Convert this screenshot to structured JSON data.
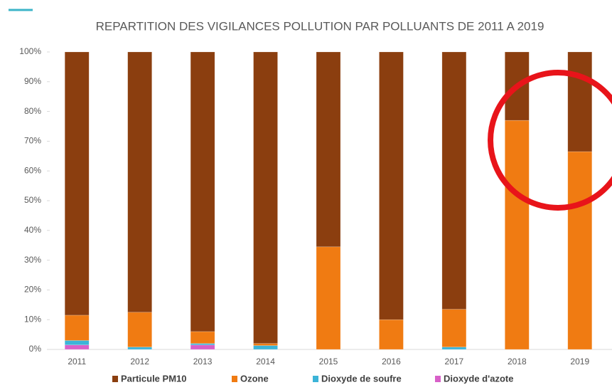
{
  "chart_data": {
    "type": "stacked_bar",
    "title": "REPARTITION DES VIGILANCES POLLUTION PAR POLLUANTS DE 2011 A 2019",
    "categories": [
      "2011",
      "2012",
      "2013",
      "2014",
      "2015",
      "2016",
      "2017",
      "2018",
      "2019"
    ],
    "series": [
      {
        "name": "Particule PM10",
        "color": "#8b3e0f",
        "values": [
          88.5,
          87.5,
          94,
          98,
          65.5,
          90,
          86.5,
          23,
          33.5
        ]
      },
      {
        "name": "Ozone",
        "color": "#f07b12",
        "values": [
          8.5,
          11.7,
          4,
          0.7,
          34.5,
          10,
          12.7,
          77,
          66.5
        ]
      },
      {
        "name": "Dioxyde de soufre",
        "color": "#3cb4d8",
        "values": [
          1.5,
          0.8,
          0.5,
          1.3,
          0,
          0,
          0.8,
          0,
          0
        ]
      },
      {
        "name": "Dioxyde d'azote",
        "color": "#d860c8",
        "values": [
          1.5,
          0,
          1.5,
          0,
          0,
          0,
          0,
          0,
          0
        ]
      }
    ],
    "ylim": [
      0,
      100
    ],
    "yticks": [
      {
        "value": 0,
        "label": "0%"
      },
      {
        "value": 10,
        "label": "10%"
      },
      {
        "value": 20,
        "label": "20%"
      },
      {
        "value": 30,
        "label": "30%"
      },
      {
        "value": 40,
        "label": "40%"
      },
      {
        "value": 50,
        "label": "50%"
      },
      {
        "value": 60,
        "label": "60%"
      },
      {
        "value": 70,
        "label": "70%"
      },
      {
        "value": 80,
        "label": "80%"
      },
      {
        "value": 90,
        "label": "90%"
      },
      {
        "value": 100,
        "label": "100%"
      }
    ],
    "legend": "bottom"
  }
}
